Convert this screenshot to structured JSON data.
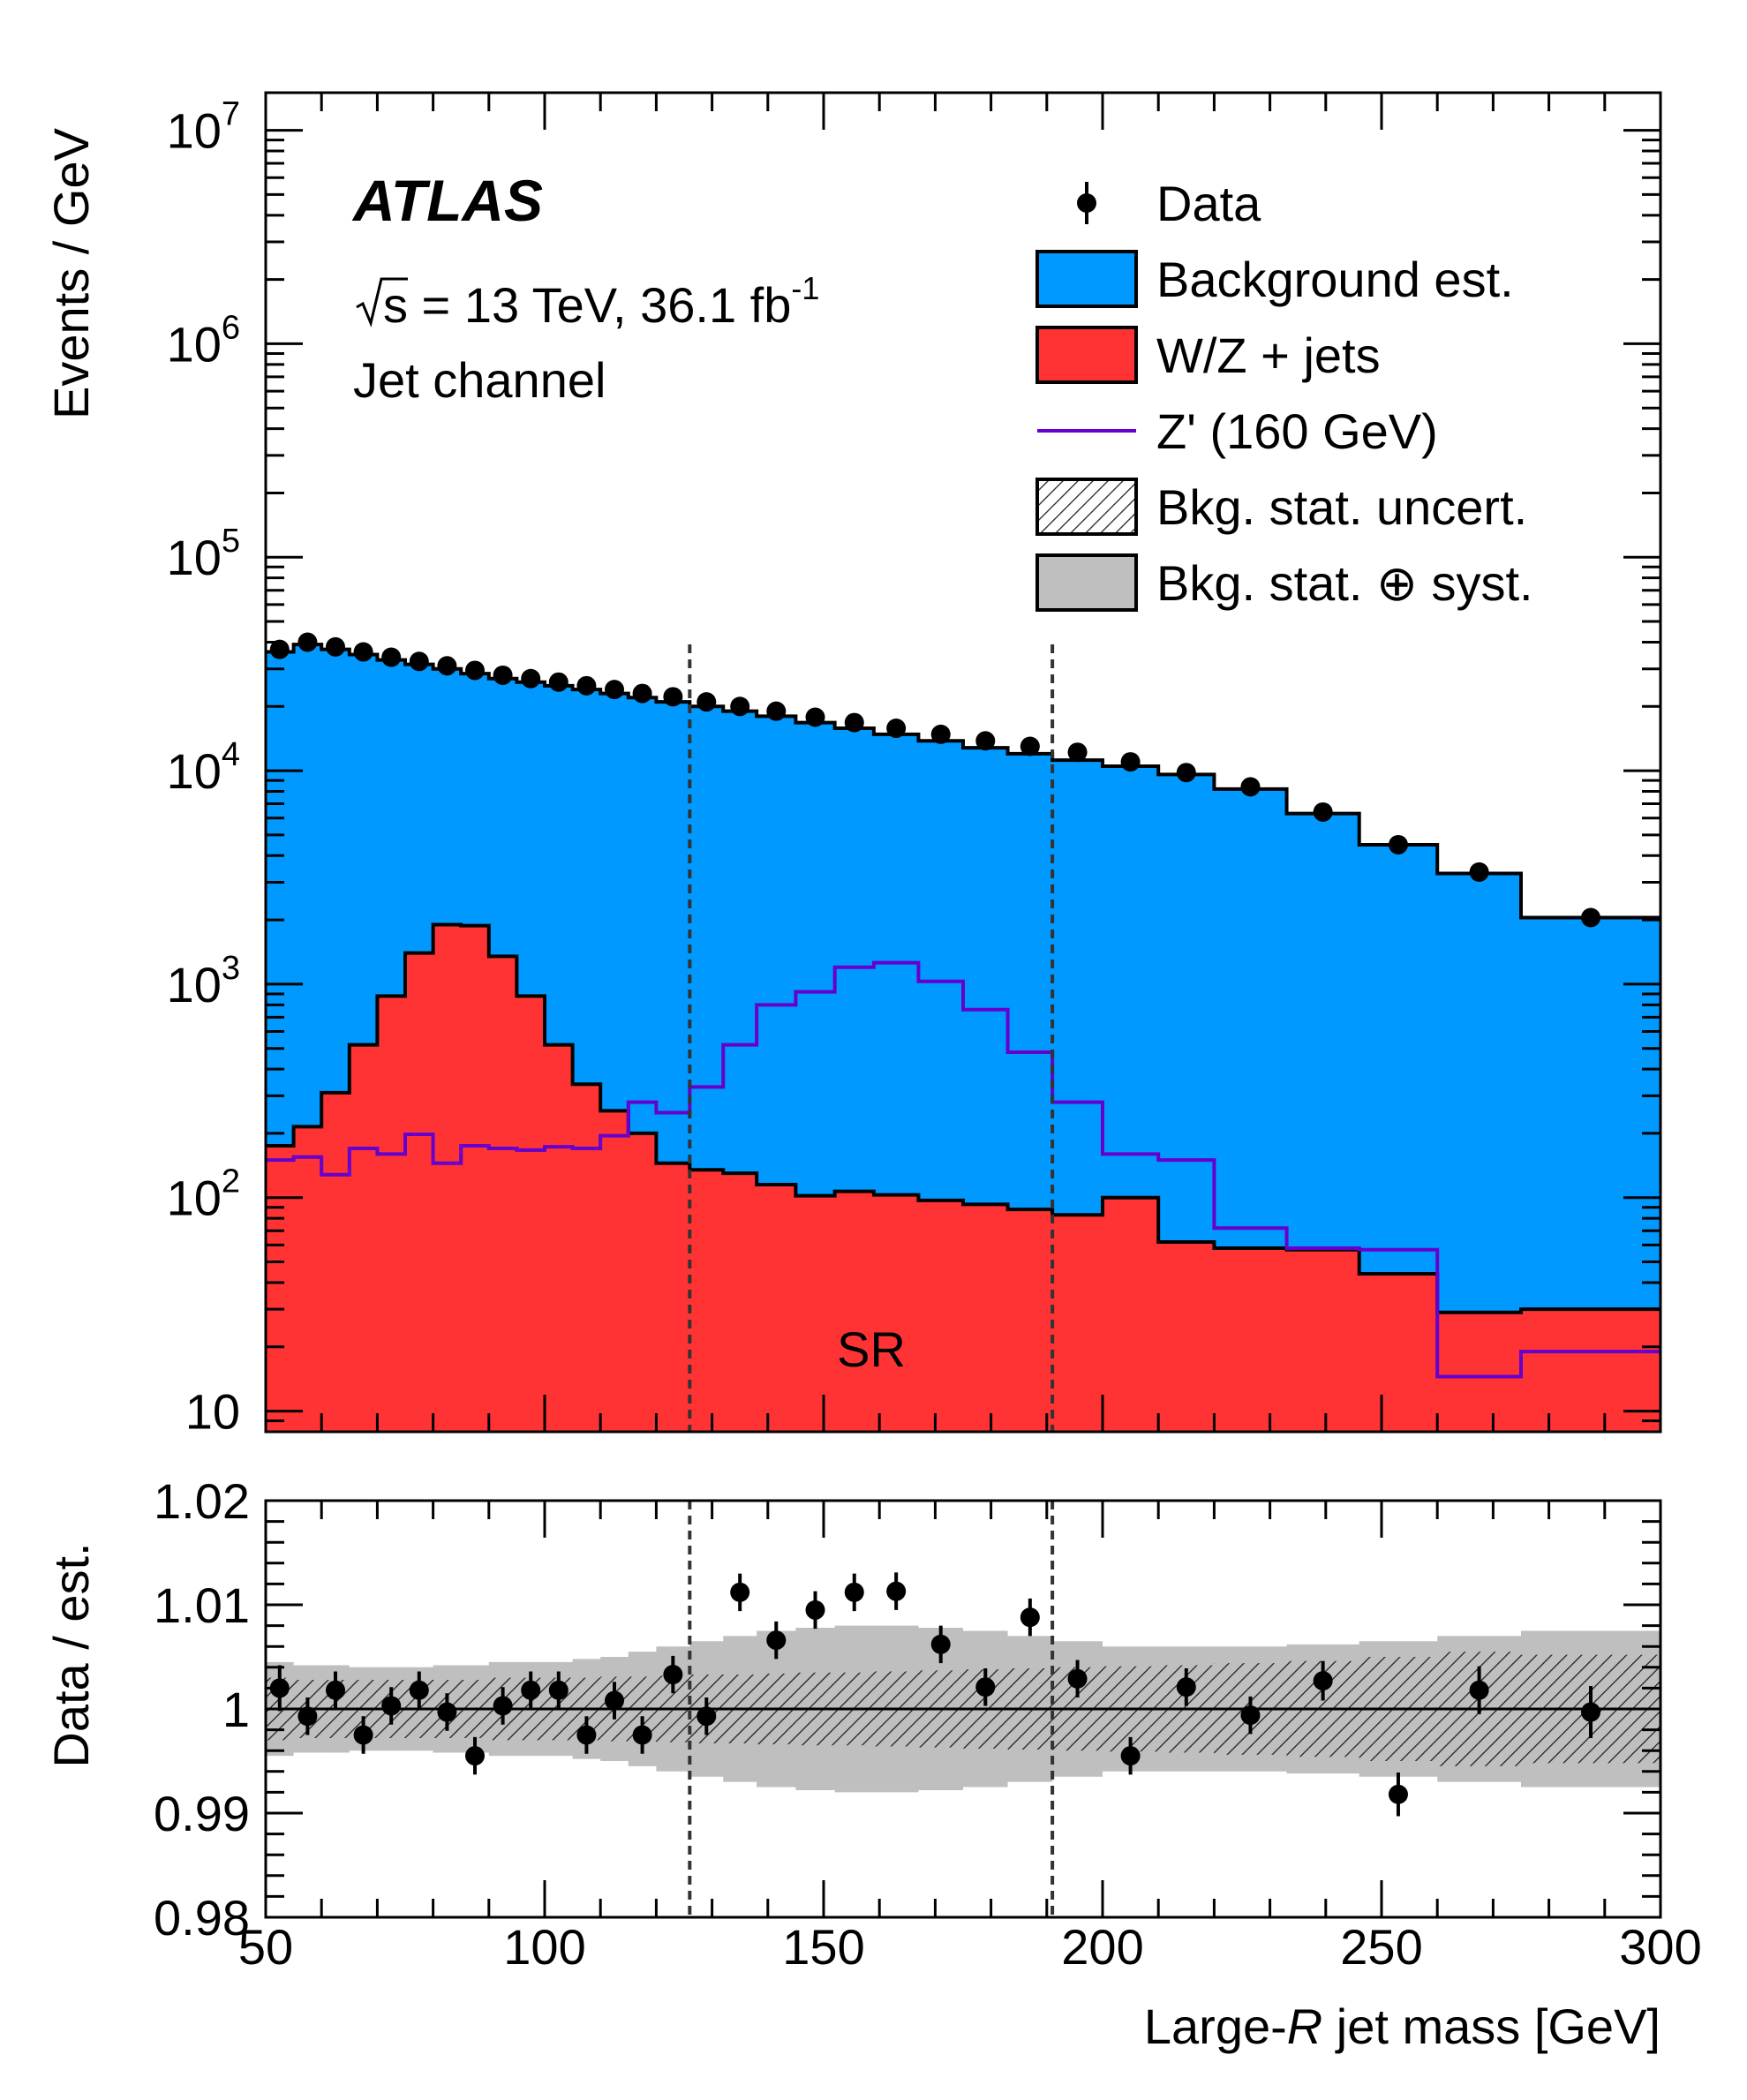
{
  "chart_data": {
    "type": "histogram",
    "experiment": "ATLAS",
    "energy_lumi": {
      "sqrts": "s",
      "text": " = 13 TeV,  36.1 fb",
      "sup": "-1"
    },
    "channel": "Jet channel",
    "region_label": "SR",
    "xlabel": {
      "pre": "Large-",
      "var": "R",
      "post": " jet mass [GeV]"
    },
    "xlim": [
      50,
      300
    ],
    "x_ticks": [
      "50",
      "100",
      "150",
      "200",
      "250",
      "300"
    ],
    "x_tick_values": [
      50,
      100,
      150,
      200,
      250,
      300
    ],
    "sr_boundaries": [
      126,
      191
    ],
    "colors": {
      "background": "#0099ff",
      "wz": "#ff3333",
      "zprime": "#6600cc",
      "syst_band": "#bfbfbf",
      "data": "#000000"
    },
    "main_panel": {
      "ylabel": "Events / GeV",
      "yscale": "log",
      "ylim": [
        8,
        15000000
      ],
      "y_ticks": [
        {
          "value": 10,
          "base": "10",
          "exp": ""
        },
        {
          "value": 100,
          "base": "10",
          "exp": "2"
        },
        {
          "value": 1000,
          "base": "10",
          "exp": "3"
        },
        {
          "value": 10000,
          "base": "10",
          "exp": "4"
        },
        {
          "value": 100000,
          "base": "10",
          "exp": "5"
        },
        {
          "value": 1000000,
          "base": "10",
          "exp": "6"
        },
        {
          "value": 10000000,
          "base": "10",
          "exp": "7"
        }
      ],
      "bin_edges": [
        50,
        55,
        60,
        65,
        70,
        75,
        80,
        85,
        90,
        95,
        100,
        105,
        110,
        115,
        120,
        126,
        132,
        138,
        145,
        152,
        159,
        167,
        175,
        183,
        191,
        200,
        210,
        220,
        233,
        246,
        260,
        275,
        300
      ],
      "background_total": [
        36000,
        39000,
        37000,
        35000,
        33000,
        31500,
        30000,
        28500,
        27000,
        26000,
        25000,
        24000,
        23000,
        22000,
        21000,
        20000,
        19000,
        18000,
        16800,
        15800,
        14800,
        13800,
        12800,
        12000,
        11200,
        10500,
        9600,
        8200,
        6300,
        4500,
        3300,
        2050
      ],
      "wz_jets": [
        175,
        215,
        310,
        520,
        880,
        1400,
        1900,
        1880,
        1350,
        880,
        520,
        340,
        255,
        200,
        145,
        135,
        130,
        115,
        102,
        107,
        103,
        97,
        93,
        88,
        83,
        100,
        62,
        58,
        57,
        44,
        29,
        30
      ],
      "zprime": [
        150,
        155,
        128,
        170,
        160,
        198,
        145,
        175,
        170,
        167,
        173,
        170,
        195,
        280,
        250,
        330,
        520,
        800,
        920,
        1200,
        1260,
        1030,
        760,
        480,
        280,
        160,
        150,
        72,
        58,
        57,
        14.5,
        19
      ],
      "data": {
        "x": [
          52.5,
          57.5,
          62.5,
          67.5,
          72.5,
          77.5,
          82.5,
          87.5,
          92.5,
          97.5,
          102.5,
          107.5,
          112.5,
          117.5,
          123,
          129,
          135,
          141.5,
          148.5,
          155.5,
          163,
          171,
          179,
          187,
          195.5,
          205,
          215,
          226.5,
          239.5,
          253,
          267.5,
          287.5
        ],
        "y": [
          37000,
          40000,
          38000,
          36000,
          34000,
          32500,
          31000,
          29500,
          28000,
          27000,
          26000,
          25000,
          24000,
          23000,
          22200,
          21000,
          20000,
          19000,
          17800,
          16800,
          15800,
          14800,
          13800,
          13000,
          12200,
          11000,
          9800,
          8400,
          6400,
          4500,
          3350,
          2050
        ]
      },
      "legend": [
        {
          "label": "Data",
          "kind": "marker"
        },
        {
          "label": "Background est.",
          "kind": "fill",
          "color": "#0099ff"
        },
        {
          "label": "W/Z + jets",
          "kind": "fill",
          "color": "#ff3333"
        },
        {
          "label": "Z' (160 GeV)",
          "kind": "line",
          "color": "#6600cc"
        },
        {
          "label": "Bkg. stat. uncert.",
          "kind": "hatch"
        },
        {
          "label": "Bkg. stat. ⊕ syst.",
          "kind": "fill",
          "color": "#bfbfbf"
        }
      ],
      "legend_placement": "top-right"
    },
    "ratio_panel": {
      "ylabel": "Data / est.",
      "ylim": [
        0.98,
        1.02
      ],
      "y_ticks": [
        "0.98",
        "0.99",
        "1",
        "1.01",
        "1.02"
      ],
      "y_tick_values": [
        0.98,
        0.99,
        1.0,
        1.01,
        1.02
      ],
      "syst_halfwidth": [
        0.0045,
        0.0042,
        0.0042,
        0.004,
        0.004,
        0.004,
        0.0042,
        0.0042,
        0.0045,
        0.0045,
        0.0045,
        0.0048,
        0.005,
        0.0055,
        0.006,
        0.0065,
        0.007,
        0.0075,
        0.0078,
        0.008,
        0.008,
        0.0078,
        0.0075,
        0.007,
        0.0065,
        0.006,
        0.006,
        0.006,
        0.0062,
        0.0065,
        0.007,
        0.0075
      ],
      "stat_halfwidth": [
        0.003,
        0.0028,
        0.0028,
        0.0028,
        0.0028,
        0.0028,
        0.0028,
        0.0028,
        0.003,
        0.003,
        0.003,
        0.003,
        0.0031,
        0.0031,
        0.0032,
        0.0033,
        0.0033,
        0.0034,
        0.0035,
        0.0035,
        0.0036,
        0.0037,
        0.0038,
        0.0039,
        0.004,
        0.0041,
        0.0042,
        0.0044,
        0.0046,
        0.005,
        0.0055,
        0.0052
      ],
      "ratio": [
        1.002,
        0.9993,
        1.0018,
        0.9975,
        1.0003,
        1.0018,
        0.9997,
        0.9955,
        1.0003,
        1.0018,
        1.0018,
        0.9975,
        1.0008,
        0.9975,
        1.0033,
        0.9993,
        1.0112,
        1.0066,
        1.0095,
        1.0112,
        1.0113,
        1.0062,
        1.0021,
        1.0088,
        1.0029,
        0.9955,
        1.0021,
        0.9994,
        1.0027,
        0.9918,
        1.0018,
        0.9997
      ],
      "ratio_err": [
        0.0022,
        0.0018,
        0.0018,
        0.0018,
        0.0018,
        0.0018,
        0.0018,
        0.0018,
        0.0018,
        0.0018,
        0.0018,
        0.0018,
        0.0018,
        0.0018,
        0.0018,
        0.0018,
        0.0018,
        0.0018,
        0.0018,
        0.0018,
        0.0018,
        0.0018,
        0.0018,
        0.0018,
        0.0018,
        0.0018,
        0.0018,
        0.0018,
        0.0019,
        0.0021,
        0.0023,
        0.0025
      ]
    }
  }
}
